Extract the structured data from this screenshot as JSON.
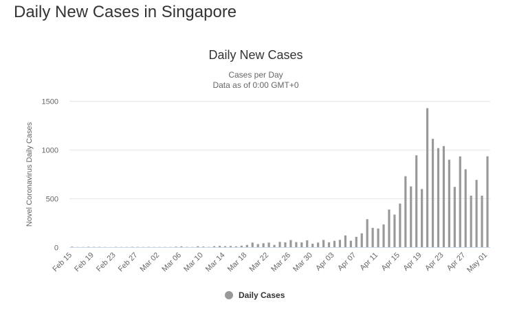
{
  "page": {
    "heading": "Daily New Cases in Singapore"
  },
  "chart_data": {
    "type": "bar",
    "title": "Daily New Cases",
    "subtitle_lines": [
      "Cases per Day",
      "Data as of 0:00 GMT+0"
    ],
    "xlabel": "",
    "ylabel": "Novel Coronavirus Daily Cases",
    "ylim": [
      0,
      1500
    ],
    "yticks": [
      0,
      500,
      1000,
      1500
    ],
    "grid": true,
    "legend": "bottom-center",
    "series_color": "#999999",
    "tick_labels": [
      "Feb 15",
      "Feb 19",
      "Feb 23",
      "Feb 27",
      "Mar 02",
      "Mar 06",
      "Mar 10",
      "Mar 14",
      "Mar 18",
      "Mar 22",
      "Mar 26",
      "Mar 30",
      "Apr 03",
      "Apr 07",
      "Apr 11",
      "Apr 15",
      "Apr 19",
      "Apr 23",
      "Apr 27",
      "May 01"
    ],
    "categories": [
      "Feb 15",
      "Feb 16",
      "Feb 17",
      "Feb 18",
      "Feb 19",
      "Feb 20",
      "Feb 21",
      "Feb 22",
      "Feb 23",
      "Feb 24",
      "Feb 25",
      "Feb 26",
      "Feb 27",
      "Feb 28",
      "Feb 29",
      "Mar 01",
      "Mar 02",
      "Mar 03",
      "Mar 04",
      "Mar 05",
      "Mar 06",
      "Mar 07",
      "Mar 08",
      "Mar 09",
      "Mar 10",
      "Mar 11",
      "Mar 12",
      "Mar 13",
      "Mar 14",
      "Mar 15",
      "Mar 16",
      "Mar 17",
      "Mar 18",
      "Mar 19",
      "Mar 20",
      "Mar 21",
      "Mar 22",
      "Mar 23",
      "Mar 24",
      "Mar 25",
      "Mar 26",
      "Mar 27",
      "Mar 28",
      "Mar 29",
      "Mar 30",
      "Mar 31",
      "Apr 01",
      "Apr 02",
      "Apr 03",
      "Apr 04",
      "Apr 05",
      "Apr 06",
      "Apr 07",
      "Apr 08",
      "Apr 09",
      "Apr 10",
      "Apr 11",
      "Apr 12",
      "Apr 13",
      "Apr 14",
      "Apr 15",
      "Apr 16",
      "Apr 17",
      "Apr 18",
      "Apr 19",
      "Apr 20",
      "Apr 21",
      "Apr 22",
      "Apr 23",
      "Apr 24",
      "Apr 25",
      "Apr 26",
      "Apr 27",
      "Apr 28",
      "Apr 29",
      "Apr 30",
      "May 01"
    ],
    "series": [
      {
        "name": "Daily Cases",
        "values": [
          5,
          2,
          2,
          4,
          3,
          3,
          2,
          1,
          3,
          2,
          2,
          3,
          3,
          2,
          3,
          2,
          2,
          2,
          2,
          5,
          8,
          3,
          2,
          9,
          6,
          3,
          10,
          13,
          10,
          12,
          8,
          15,
          23,
          47,
          32,
          40,
          47,
          23,
          54,
          49,
          73,
          52,
          49,
          70,
          35,
          47,
          74,
          49,
          65,
          75,
          120,
          66,
          106,
          142,
          287,
          198,
          191,
          233,
          386,
          334,
          447,
          728,
          623,
          942,
          596,
          1426,
          1111,
          1016,
          1037,
          897,
          618,
          931,
          799,
          528,
          690,
          528,
          932
        ]
      }
    ]
  }
}
